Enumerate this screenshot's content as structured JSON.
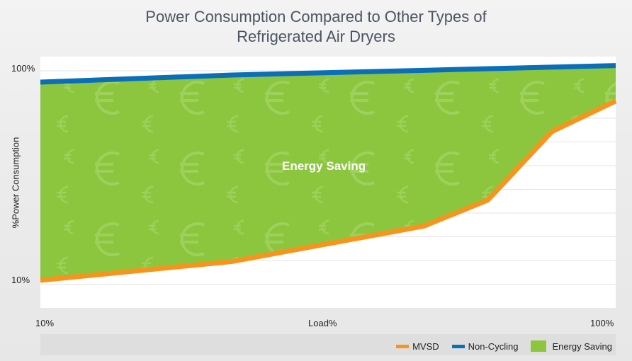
{
  "title_line1": "Power Consumption Compared to Other Types of",
  "title_line2": "Refrigerated Air Dryers",
  "chart_data": {
    "type": "area",
    "title": "Power Consumption Compared to Other Types of Refrigerated Air Dryers",
    "xlabel": "Load%",
    "ylabel": "%Power Consumption",
    "x_tick_labels": [
      "10%",
      "100%"
    ],
    "y_tick_labels": [
      "10%",
      "100%"
    ],
    "xlim": [
      10,
      100
    ],
    "ylim": [
      10,
      100
    ],
    "grid": true,
    "legend_position": "bottom-right",
    "annotations": [
      "Energy Saving"
    ],
    "series": [
      {
        "name": "MVSD",
        "color": "#f7941d",
        "x": [
          10,
          40,
          70,
          80,
          90,
          100
        ],
        "y": [
          10,
          18,
          33,
          44,
          73,
          86
        ]
      },
      {
        "name": "Non-Cycling",
        "color": "#0a6eb8",
        "x": [
          10,
          40,
          70,
          100
        ],
        "y": [
          94,
          97,
          99,
          101
        ]
      },
      {
        "name": "Energy Saving",
        "color": "#8cc63f",
        "type": "area_between"
      }
    ]
  }
}
